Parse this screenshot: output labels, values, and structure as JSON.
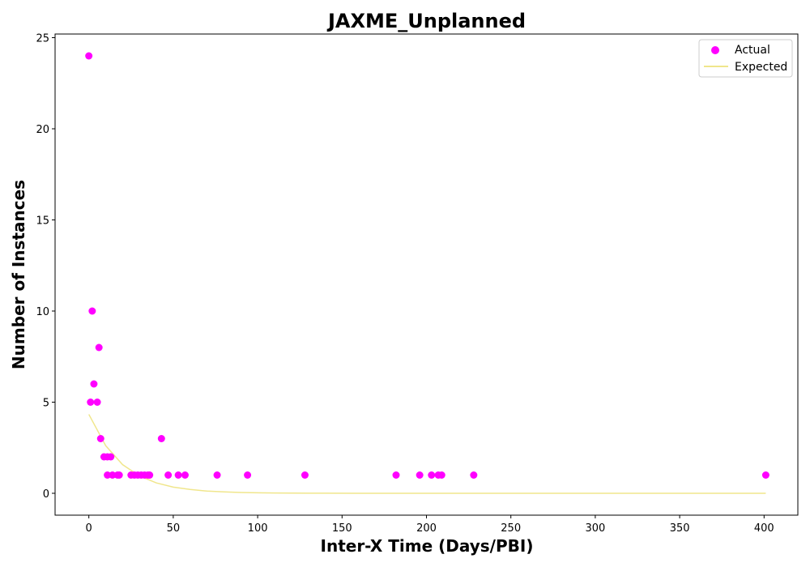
{
  "chart_data": {
    "type": "scatter",
    "title": "JAXME_Unplanned",
    "xlabel": "Inter-X Time (Days/PBI)",
    "ylabel": "Number of Instances",
    "xlim": [
      -20,
      420
    ],
    "ylim": [
      -1.2,
      25.2
    ],
    "xticks": [
      0,
      50,
      100,
      150,
      200,
      250,
      300,
      350,
      400
    ],
    "yticks": [
      0,
      5,
      10,
      15,
      20,
      25
    ],
    "grid": false,
    "legend_position": "top-right",
    "series": [
      {
        "name": "Actual",
        "kind": "scatter",
        "color": "#ff00ff",
        "points": [
          [
            0,
            24
          ],
          [
            1,
            5
          ],
          [
            2,
            10
          ],
          [
            3,
            6
          ],
          [
            5,
            5
          ],
          [
            6,
            8
          ],
          [
            7,
            3
          ],
          [
            9,
            2
          ],
          [
            11,
            2
          ],
          [
            11,
            1
          ],
          [
            13,
            2
          ],
          [
            14,
            1
          ],
          [
            17,
            1
          ],
          [
            18,
            1
          ],
          [
            25,
            1
          ],
          [
            27,
            1
          ],
          [
            29,
            1
          ],
          [
            31,
            1
          ],
          [
            33,
            1
          ],
          [
            35,
            1
          ],
          [
            36,
            1
          ],
          [
            43,
            3
          ],
          [
            47,
            1
          ],
          [
            53,
            1
          ],
          [
            57,
            1
          ],
          [
            76,
            1
          ],
          [
            94,
            1
          ],
          [
            128,
            1
          ],
          [
            182,
            1
          ],
          [
            196,
            1
          ],
          [
            203,
            1
          ],
          [
            207,
            1
          ],
          [
            209,
            1
          ],
          [
            228,
            1
          ],
          [
            401,
            1
          ]
        ]
      },
      {
        "name": "Expected",
        "kind": "line",
        "color": "#f0e68c",
        "x": [
          0,
          10,
          20,
          30,
          40,
          50,
          60,
          70,
          80,
          90,
          100,
          110,
          120,
          140,
          160,
          200,
          250,
          300,
          350,
          401
        ],
        "y": [
          4.33,
          2.61,
          1.57,
          0.95,
          0.57,
          0.34,
          0.21,
          0.12,
          0.075,
          0.045,
          0.027,
          0.016,
          0.01,
          0.004,
          0.0013,
          0.0002,
          2e-05,
          0.0,
          0.0,
          0.0
        ]
      }
    ]
  }
}
